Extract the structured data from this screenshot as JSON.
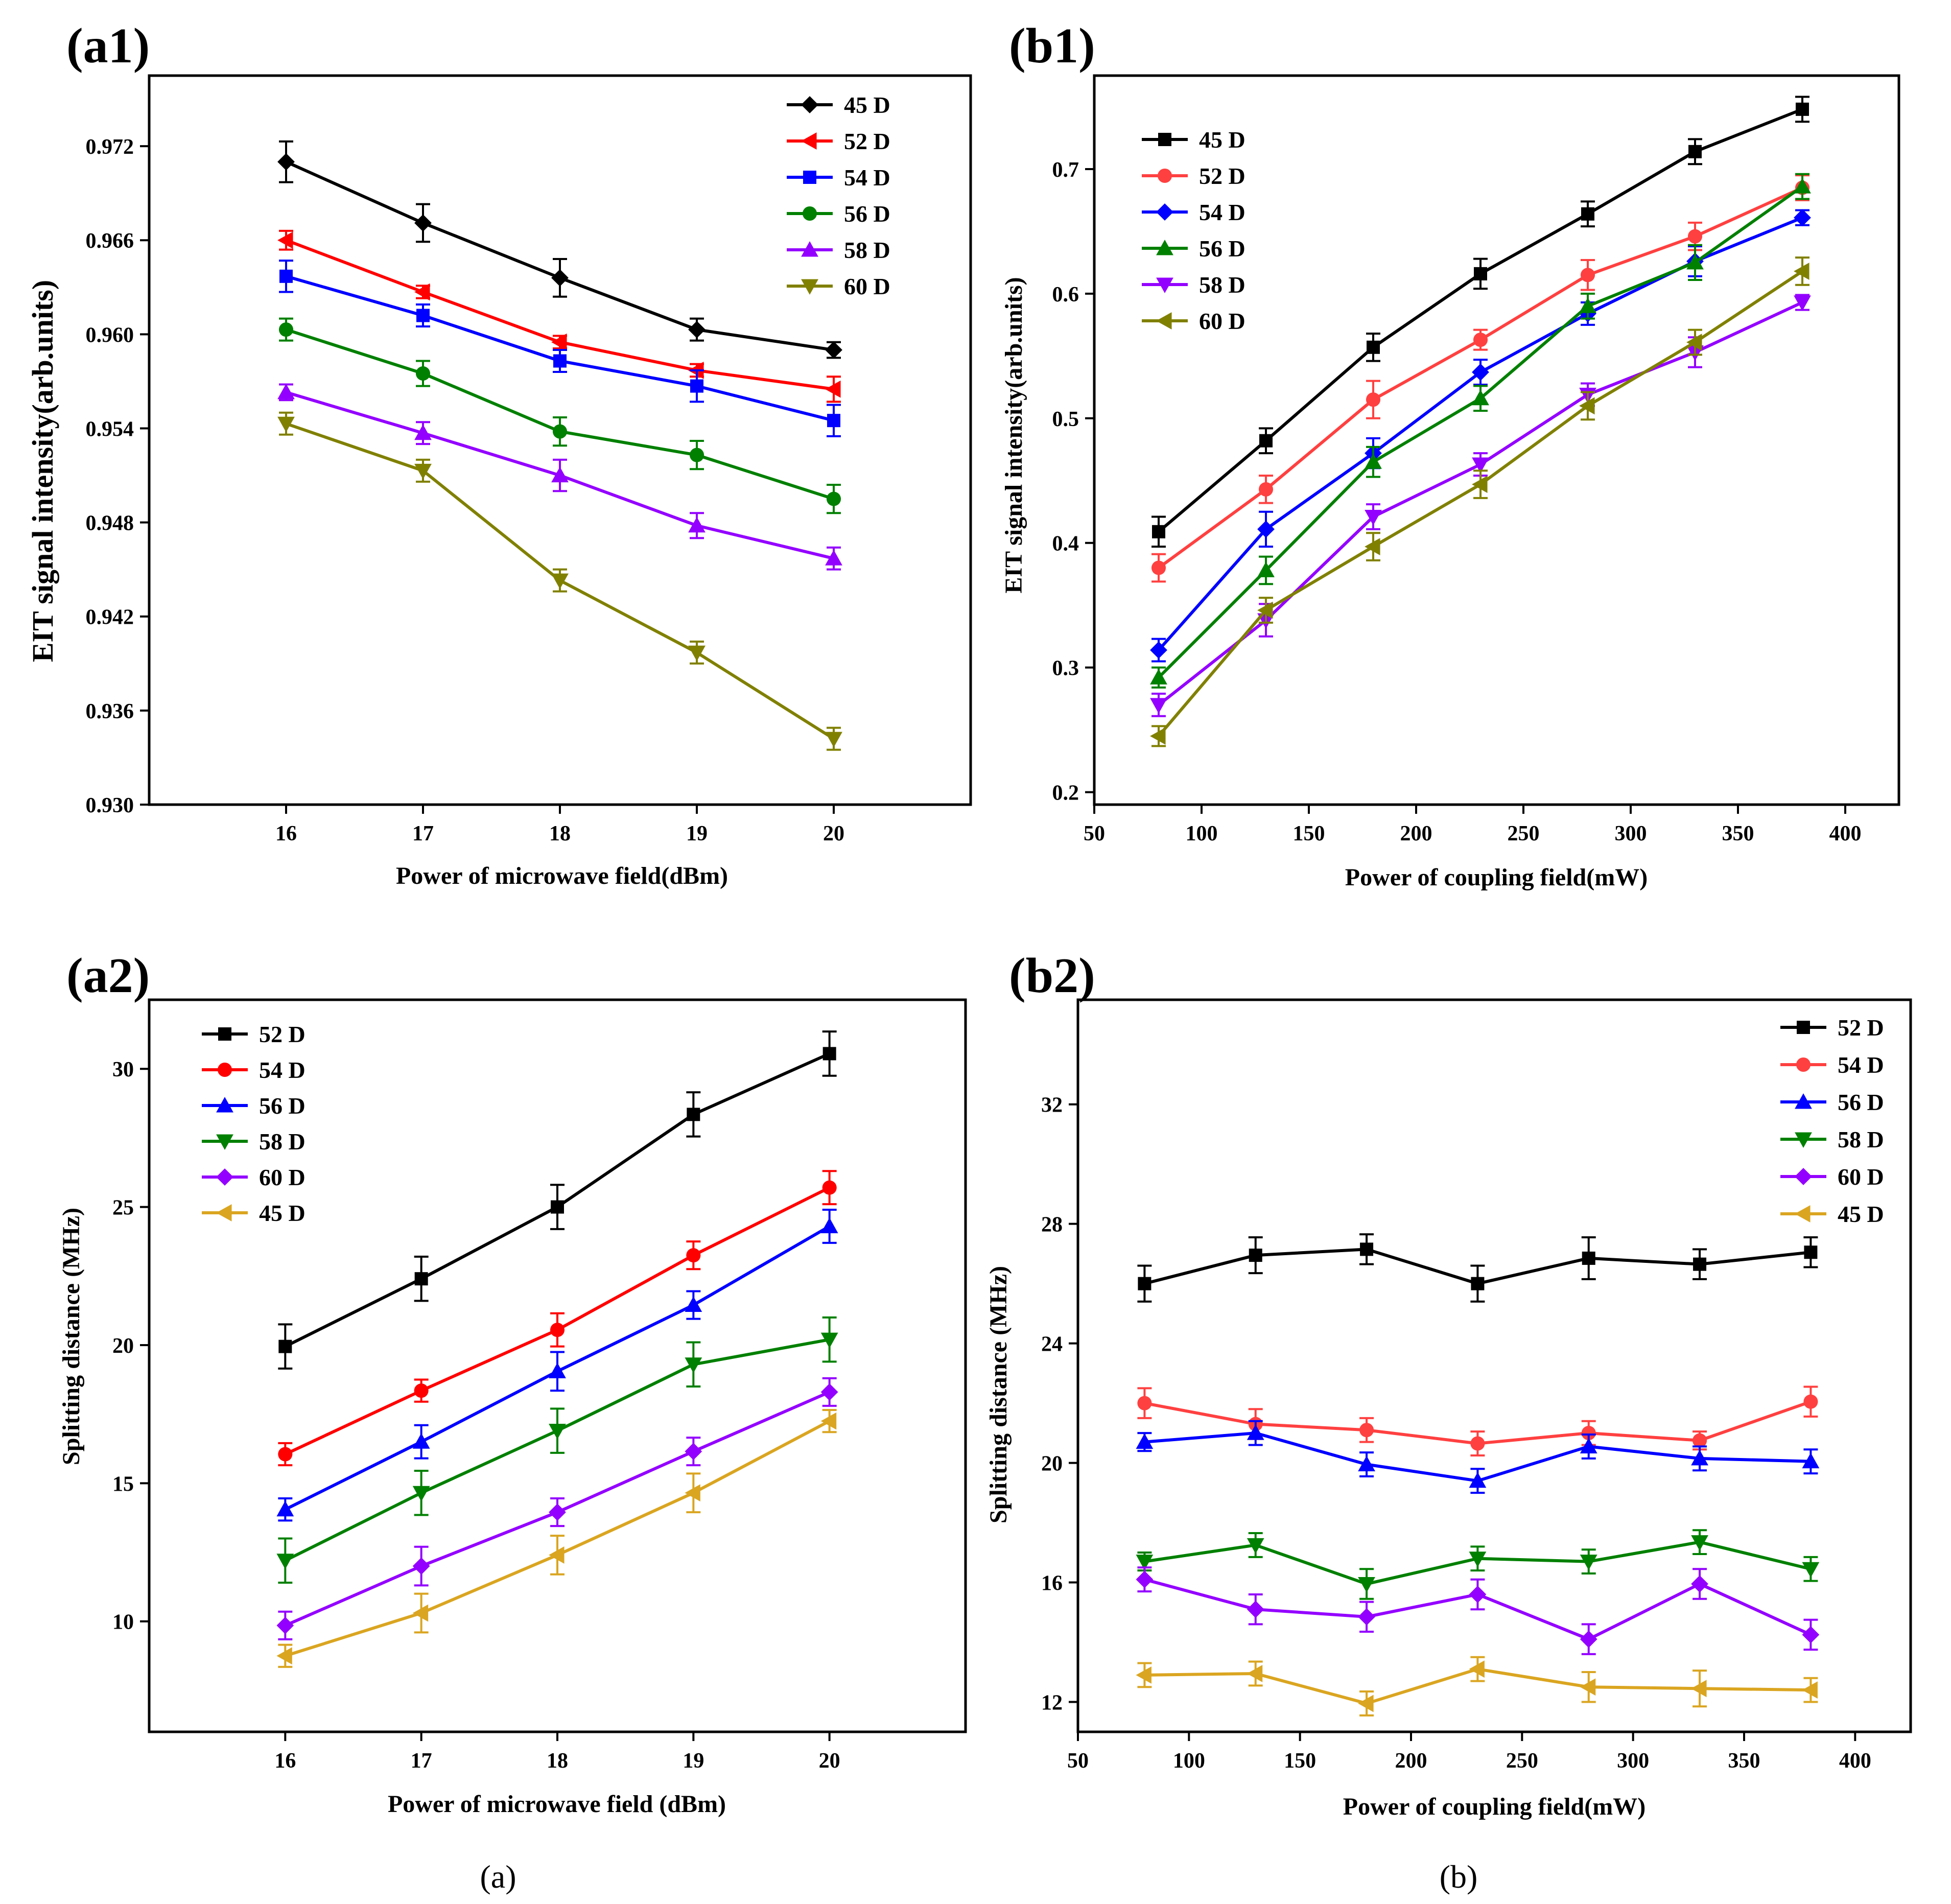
{
  "captions": {
    "a": "(a)",
    "b": "(b)"
  },
  "chart_data": [
    {
      "id": "a1",
      "panel_label": "(a1)",
      "type": "line",
      "xlabel": "Power of microwave field(dBm)",
      "ylabel": "EIT signal intensity(arb.units)",
      "xlim": [
        15.0,
        21.0
      ],
      "ylim": [
        0.93,
        0.9765
      ],
      "xticks": [
        16,
        17,
        18,
        19,
        20
      ],
      "yticks": [
        0.93,
        0.936,
        0.942,
        0.948,
        0.954,
        0.96,
        0.966,
        0.972
      ],
      "ytick_labels": [
        "0.930",
        "0.936",
        "0.942",
        "0.948",
        "0.954",
        "0.960",
        "0.966",
        "0.972"
      ],
      "legend_position": "top-right",
      "x": [
        16,
        17,
        18,
        19,
        20
      ],
      "series": [
        {
          "name": "45 D",
          "color": "#000000",
          "marker": "diamond",
          "values": [
            0.971,
            0.9671,
            0.9636,
            0.9603,
            0.959
          ],
          "errors": [
            0.0013,
            0.0012,
            0.0012,
            0.0007,
            0.0005
          ]
        },
        {
          "name": "52 D",
          "color": "#ff0000",
          "marker": "triangle-left",
          "values": [
            0.966,
            0.9627,
            0.9595,
            0.9577,
            0.9565
          ],
          "errors": [
            0.0006,
            0.0004,
            0.0004,
            0.0004,
            0.0008
          ]
        },
        {
          "name": "54 D",
          "color": "#0000ff",
          "marker": "square",
          "values": [
            0.9637,
            0.9612,
            0.9583,
            0.9567,
            0.9545
          ],
          "errors": [
            0.001,
            0.0007,
            0.0007,
            0.001,
            0.001
          ]
        },
        {
          "name": "56 D",
          "color": "#008000",
          "marker": "circle",
          "values": [
            0.9603,
            0.9575,
            0.9538,
            0.9523,
            0.9495
          ],
          "errors": [
            0.0007,
            0.0008,
            0.0009,
            0.0009,
            0.0009
          ]
        },
        {
          "name": "58 D",
          "color": "#9400ff",
          "marker": "triangle-up",
          "values": [
            0.9563,
            0.9537,
            0.951,
            0.9478,
            0.9457
          ],
          "errors": [
            0.0005,
            0.0007,
            0.001,
            0.0008,
            0.0007
          ]
        },
        {
          "name": "60 D",
          "color": "#808000",
          "marker": "triangle-down",
          "values": [
            0.9543,
            0.9513,
            0.9443,
            0.9397,
            0.9342
          ],
          "errors": [
            0.0007,
            0.0007,
            0.0007,
            0.0007,
            0.0007
          ]
        }
      ]
    },
    {
      "id": "b1",
      "panel_label": "(b1)",
      "type": "line",
      "xlabel": "Power of coupling field(mW)",
      "ylabel": "EIT signal intensity(arb.units)",
      "xlim": [
        50,
        425
      ],
      "ylim": [
        0.19,
        0.775
      ],
      "xticks": [
        50,
        100,
        150,
        200,
        250,
        300,
        350,
        400
      ],
      "yticks": [
        0.2,
        0.3,
        0.4,
        0.5,
        0.6,
        0.7
      ],
      "ytick_labels": [
        "0.2",
        "0.3",
        "0.4",
        "0.5",
        "0.6",
        "0.7"
      ],
      "legend_position": "top-left",
      "x": [
        80,
        130,
        180,
        230,
        280,
        330,
        380
      ],
      "series": [
        {
          "name": "45 D",
          "color": "#000000",
          "marker": "square",
          "values": [
            0.409,
            0.482,
            0.557,
            0.616,
            0.664,
            0.714,
            0.748
          ],
          "errors": [
            0.012,
            0.01,
            0.011,
            0.012,
            0.01,
            0.01,
            0.01
          ]
        },
        {
          "name": "52 D",
          "color": "#ff4040",
          "marker": "circle",
          "values": [
            0.38,
            0.443,
            0.515,
            0.563,
            0.615,
            0.646,
            0.685
          ],
          "errors": [
            0.011,
            0.011,
            0.015,
            0.008,
            0.012,
            0.011,
            0.01
          ]
        },
        {
          "name": "54 D",
          "color": "#0000ff",
          "marker": "diamond",
          "values": [
            0.314,
            0.411,
            0.472,
            0.537,
            0.584,
            0.626,
            0.661
          ],
          "errors": [
            0.009,
            0.014,
            0.012,
            0.01,
            0.009,
            0.012,
            0.006
          ]
        },
        {
          "name": "56 D",
          "color": "#008000",
          "marker": "triangle-up",
          "values": [
            0.292,
            0.378,
            0.465,
            0.516,
            0.59,
            0.625,
            0.686
          ],
          "errors": [
            0.008,
            0.011,
            0.012,
            0.01,
            0.01,
            0.014,
            0.01
          ]
        },
        {
          "name": "58 D",
          "color": "#9400ff",
          "marker": "triangle-down",
          "values": [
            0.27,
            0.338,
            0.421,
            0.463,
            0.519,
            0.553,
            0.593
          ],
          "errors": [
            0.009,
            0.013,
            0.01,
            0.009,
            0.009,
            0.012,
            0.006
          ]
        },
        {
          "name": "60 D",
          "color": "#808000",
          "marker": "triangle-left",
          "values": [
            0.245,
            0.346,
            0.397,
            0.447,
            0.51,
            0.561,
            0.618
          ],
          "errors": [
            0.008,
            0.01,
            0.011,
            0.011,
            0.011,
            0.01,
            0.011
          ]
        }
      ]
    },
    {
      "id": "a2",
      "panel_label": "(a2)",
      "type": "line",
      "xlabel": "Power of microwave field (dBm)",
      "ylabel": "Splitting distance (MHz)",
      "xlim": [
        15.0,
        21.0
      ],
      "ylim": [
        6.0,
        32.5
      ],
      "xticks": [
        16,
        17,
        18,
        19,
        20
      ],
      "yticks": [
        10,
        15,
        20,
        25,
        30
      ],
      "ytick_labels": [
        "10",
        "15",
        "20",
        "25",
        "30"
      ],
      "legend_position": "top-left",
      "x": [
        16,
        17,
        18,
        19,
        20
      ],
      "series": [
        {
          "name": "52 D",
          "color": "#000000",
          "marker": "square",
          "values": [
            19.95,
            22.4,
            25.0,
            28.35,
            30.55
          ],
          "errors": [
            0.8,
            0.8,
            0.8,
            0.8,
            0.8
          ]
        },
        {
          "name": "54 D",
          "color": "#ff0000",
          "marker": "circle",
          "values": [
            16.05,
            18.35,
            20.55,
            23.25,
            25.7
          ],
          "errors": [
            0.4,
            0.4,
            0.6,
            0.5,
            0.6
          ]
        },
        {
          "name": "56 D",
          "color": "#0000ff",
          "marker": "triangle-up",
          "values": [
            14.05,
            16.5,
            19.05,
            21.45,
            24.3
          ],
          "errors": [
            0.4,
            0.6,
            0.7,
            0.5,
            0.6
          ]
        },
        {
          "name": "58 D",
          "color": "#008000",
          "marker": "triangle-down",
          "values": [
            12.2,
            14.65,
            16.9,
            19.3,
            20.2
          ],
          "errors": [
            0.8,
            0.8,
            0.8,
            0.8,
            0.8
          ]
        },
        {
          "name": "60 D",
          "color": "#9400ff",
          "marker": "diamond",
          "values": [
            9.85,
            12.0,
            13.95,
            16.15,
            18.3
          ],
          "errors": [
            0.5,
            0.7,
            0.5,
            0.5,
            0.5
          ]
        },
        {
          "name": "45 D",
          "color": "#daa520",
          "marker": "triangle-left",
          "values": [
            8.75,
            10.3,
            12.4,
            14.65,
            17.25
          ],
          "errors": [
            0.4,
            0.7,
            0.7,
            0.7,
            0.4
          ]
        }
      ]
    },
    {
      "id": "b2",
      "panel_label": "(b2)",
      "type": "line",
      "xlabel": "Power of coupling field(mW)",
      "ylabel": "Splitting distance (MHz)",
      "xlim": [
        50,
        425
      ],
      "ylim": [
        11.0,
        35.5
      ],
      "xticks": [
        50,
        100,
        150,
        200,
        250,
        300,
        350,
        400
      ],
      "yticks": [
        12,
        16,
        20,
        24,
        28,
        32
      ],
      "ytick_labels": [
        "12",
        "16",
        "20",
        "24",
        "28",
        "32"
      ],
      "legend_position": "top-right",
      "x": [
        80,
        130,
        180,
        230,
        280,
        330,
        380
      ],
      "series": [
        {
          "name": "52 D",
          "color": "#000000",
          "marker": "square",
          "values": [
            26.0,
            26.95,
            27.15,
            26.0,
            26.85,
            26.65,
            27.05
          ],
          "errors": [
            0.6,
            0.6,
            0.5,
            0.6,
            0.7,
            0.5,
            0.5
          ]
        },
        {
          "name": "54 D",
          "color": "#ff4040",
          "marker": "circle",
          "values": [
            22.0,
            21.3,
            21.1,
            20.65,
            21.0,
            20.75,
            22.05
          ],
          "errors": [
            0.5,
            0.5,
            0.4,
            0.4,
            0.4,
            0.3,
            0.5
          ]
        },
        {
          "name": "56 D",
          "color": "#0000ff",
          "marker": "triangle-up",
          "values": [
            20.7,
            21.0,
            19.95,
            19.4,
            20.55,
            20.15,
            20.05
          ],
          "errors": [
            0.3,
            0.4,
            0.4,
            0.4,
            0.4,
            0.4,
            0.4
          ]
        },
        {
          "name": "58 D",
          "color": "#008000",
          "marker": "triangle-down",
          "values": [
            16.7,
            17.25,
            15.95,
            16.8,
            16.7,
            17.35,
            16.45
          ],
          "errors": [
            0.3,
            0.4,
            0.5,
            0.4,
            0.4,
            0.4,
            0.4
          ]
        },
        {
          "name": "60 D",
          "color": "#9400ff",
          "marker": "diamond",
          "values": [
            16.1,
            15.1,
            14.85,
            15.6,
            14.1,
            15.95,
            14.25
          ],
          "errors": [
            0.4,
            0.5,
            0.5,
            0.5,
            0.5,
            0.5,
            0.5
          ]
        },
        {
          "name": "45 D",
          "color": "#daa520",
          "marker": "triangle-left",
          "values": [
            12.9,
            12.95,
            11.95,
            13.1,
            12.5,
            12.45,
            12.4
          ],
          "errors": [
            0.4,
            0.4,
            0.4,
            0.4,
            0.5,
            0.6,
            0.4
          ]
        }
      ]
    }
  ]
}
